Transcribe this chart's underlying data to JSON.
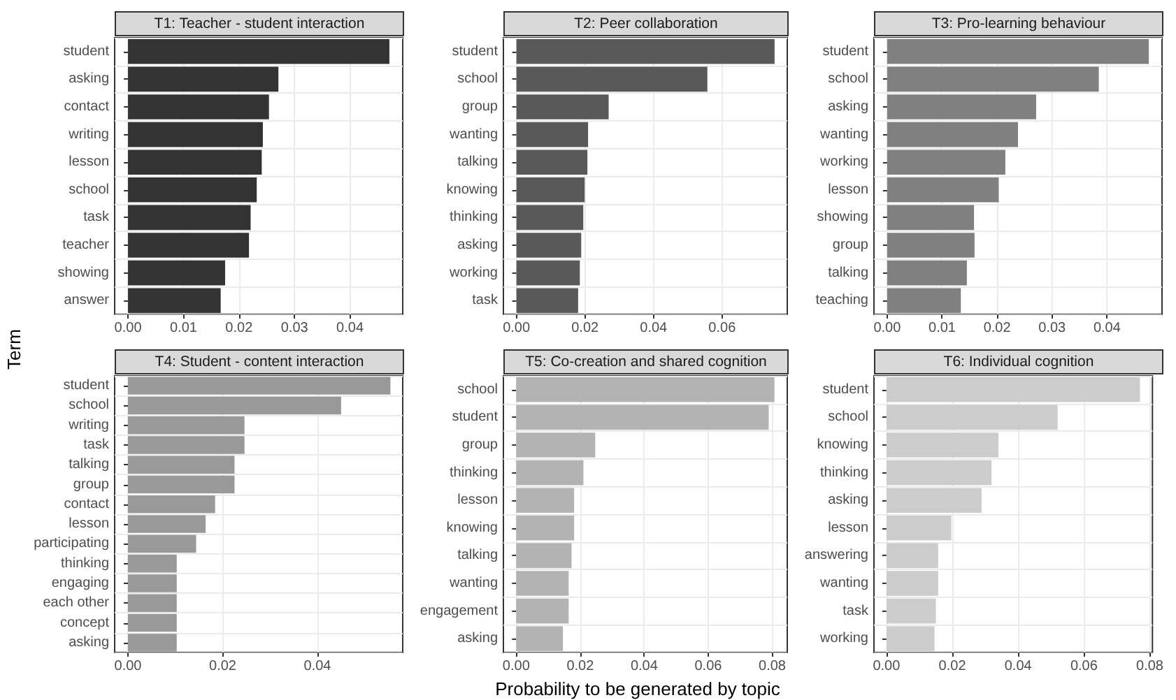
{
  "chart_data": [
    {
      "type": "bar",
      "orientation": "horizontal",
      "title": "T1: Teacher - student interaction",
      "ylabel": "Term",
      "categories": [
        "student",
        "asking",
        "contact",
        "writing",
        "lesson",
        "school",
        "task",
        "teacher",
        "showing",
        "answer"
      ],
      "values": [
        0.0471,
        0.0271,
        0.0254,
        0.0243,
        0.0241,
        0.0232,
        0.0221,
        0.0218,
        0.0175,
        0.0167
      ],
      "color": "#333333",
      "xlim": [
        -0.0024,
        0.0495
      ],
      "xticks": [
        {
          "value": 0,
          "label": "0.00"
        },
        {
          "value": 0.01,
          "label": "0.01"
        },
        {
          "value": 0.02,
          "label": "0.02"
        },
        {
          "value": 0.03,
          "label": "0.03"
        },
        {
          "value": 0.04,
          "label": "0.04"
        }
      ],
      "grid": true
    },
    {
      "type": "bar",
      "orientation": "horizontal",
      "title": "T2: Peer collaboration",
      "categories": [
        "student",
        "school",
        "group",
        "wanting",
        "talking",
        "knowing",
        "thinking",
        "asking",
        "working",
        "task"
      ],
      "values": [
        0.0753,
        0.0557,
        0.0269,
        0.0209,
        0.0207,
        0.0199,
        0.0195,
        0.0189,
        0.0185,
        0.018
      ],
      "color": "#595959",
      "xlim": [
        -0.0038,
        0.079
      ],
      "xticks": [
        {
          "value": 0,
          "label": "0.00"
        },
        {
          "value": 0.02,
          "label": "0.02"
        },
        {
          "value": 0.04,
          "label": "0.04"
        },
        {
          "value": 0.06,
          "label": "0.06"
        }
      ],
      "grid": true
    },
    {
      "type": "bar",
      "orientation": "horizontal",
      "title": "T3: Pro-learning behaviour",
      "categories": [
        "student",
        "school",
        "asking",
        "wanting",
        "working",
        "lesson",
        "showing",
        "group",
        "talking",
        "teaching"
      ],
      "values": [
        0.0476,
        0.0385,
        0.0271,
        0.0238,
        0.0215,
        0.0203,
        0.0158,
        0.0159,
        0.0145,
        0.0134
      ],
      "color": "#808080",
      "xlim": [
        -0.0024,
        0.05
      ],
      "xticks": [
        {
          "value": 0,
          "label": "0.00"
        },
        {
          "value": 0.01,
          "label": "0.01"
        },
        {
          "value": 0.02,
          "label": "0.02"
        },
        {
          "value": 0.03,
          "label": "0.03"
        },
        {
          "value": 0.04,
          "label": "0.04"
        }
      ],
      "grid": true
    },
    {
      "type": "bar",
      "orientation": "horizontal",
      "title": "T4: Student - content interaction",
      "categories": [
        "student",
        "school",
        "writing",
        "task",
        "talking",
        "group",
        "contact",
        "lesson",
        "participating",
        "thinking",
        "engaging",
        "each other",
        "concept",
        "asking"
      ],
      "values": [
        0.0554,
        0.045,
        0.0246,
        0.0246,
        0.0225,
        0.0225,
        0.0184,
        0.0164,
        0.0144,
        0.0103,
        0.0103,
        0.0103,
        0.0103,
        0.0103
      ],
      "color": "#999999",
      "xlim": [
        -0.0028,
        0.058
      ],
      "xticks": [
        {
          "value": 0,
          "label": "0.00"
        },
        {
          "value": 0.02,
          "label": "0.02"
        },
        {
          "value": 0.04,
          "label": "0.04"
        }
      ],
      "grid": true
    },
    {
      "type": "bar",
      "orientation": "horizontal",
      "title": "T5: Co-creation and shared cognition",
      "xlabel": "Probability to be generated by topic",
      "categories": [
        "school",
        "student",
        "group",
        "thinking",
        "lesson",
        "knowing",
        "talking",
        "wanting",
        "engagement",
        "asking"
      ],
      "values": [
        0.0807,
        0.0789,
        0.0247,
        0.021,
        0.0181,
        0.0181,
        0.0173,
        0.0164,
        0.0164,
        0.0146
      ],
      "color": "#b3b3b3",
      "xlim": [
        -0.004,
        0.0847
      ],
      "xticks": [
        {
          "value": 0,
          "label": "0.00"
        },
        {
          "value": 0.02,
          "label": "0.02"
        },
        {
          "value": 0.04,
          "label": "0.04"
        },
        {
          "value": 0.06,
          "label": "0.06"
        },
        {
          "value": 0.08,
          "label": "0.08"
        }
      ],
      "grid": true
    },
    {
      "type": "bar",
      "orientation": "horizontal",
      "title": "T6: Individual cognition",
      "categories": [
        "student",
        "school",
        "knowing",
        "thinking",
        "asking",
        "lesson",
        "answering",
        "wanting",
        "task",
        "working"
      ],
      "values": [
        0.077,
        0.052,
        0.034,
        0.0319,
        0.0289,
        0.0197,
        0.0157,
        0.0157,
        0.015,
        0.0146
      ],
      "color": "#cccccc",
      "xlim": [
        -0.0038,
        0.0808
      ],
      "xticks": [
        {
          "value": 0,
          "label": "0.00"
        },
        {
          "value": 0.02,
          "label": "0.02"
        },
        {
          "value": 0.04,
          "label": "0.04"
        },
        {
          "value": 0.06,
          "label": "0.06"
        },
        {
          "value": 0.08,
          "label": "0.08"
        }
      ],
      "grid": true
    }
  ]
}
